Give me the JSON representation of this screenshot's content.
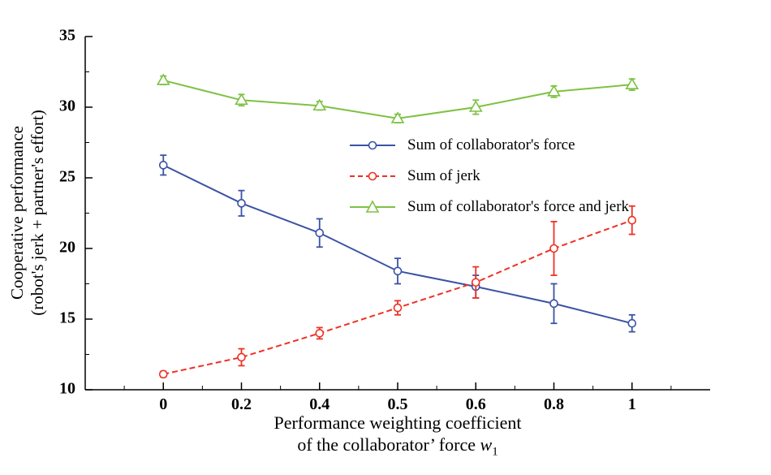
{
  "chart_data": {
    "type": "line",
    "categories": [
      "0",
      "0.2",
      "0.4",
      "0.5",
      "0.6",
      "0.8",
      "1"
    ],
    "series": [
      {
        "name": "Sum of collaborator's force",
        "color": "#3A53A4",
        "style": "solid",
        "marker": "circle",
        "values": [
          25.9,
          23.2,
          21.1,
          18.4,
          17.3,
          16.1,
          14.7
        ],
        "errors": [
          0.7,
          0.9,
          1.0,
          0.9,
          0.8,
          1.4,
          0.6
        ]
      },
      {
        "name": "Sum of jerk",
        "color": "#EE3124",
        "style": "dashed",
        "marker": "circle",
        "values": [
          11.1,
          12.3,
          14.0,
          15.8,
          17.6,
          20.0,
          22.0
        ],
        "errors": [
          0.2,
          0.6,
          0.4,
          0.5,
          1.1,
          1.9,
          1.0
        ]
      },
      {
        "name": "Sum of collaborator's force and jerk",
        "color": "#7DC242",
        "style": "solid",
        "marker": "triangle",
        "values": [
          31.9,
          30.5,
          30.1,
          29.2,
          30.0,
          31.1,
          31.6
        ],
        "errors": [
          0.3,
          0.4,
          0.3,
          0.3,
          0.5,
          0.4,
          0.4
        ]
      }
    ],
    "ylim": [
      10,
      35
    ],
    "ytick_step": 5,
    "grid": false,
    "legend_position": "inside-upper-middle",
    "ylabel_line1": "Cooperative performance",
    "ylabel_line2": "(robot's jerk + partner's effort)",
    "xlabel_line1": "Performance weighting coefficient",
    "xlabel_line2_prefix": "of the collaborator’  force ",
    "xlabel_var": "w",
    "xlabel_var_sub": "1"
  }
}
